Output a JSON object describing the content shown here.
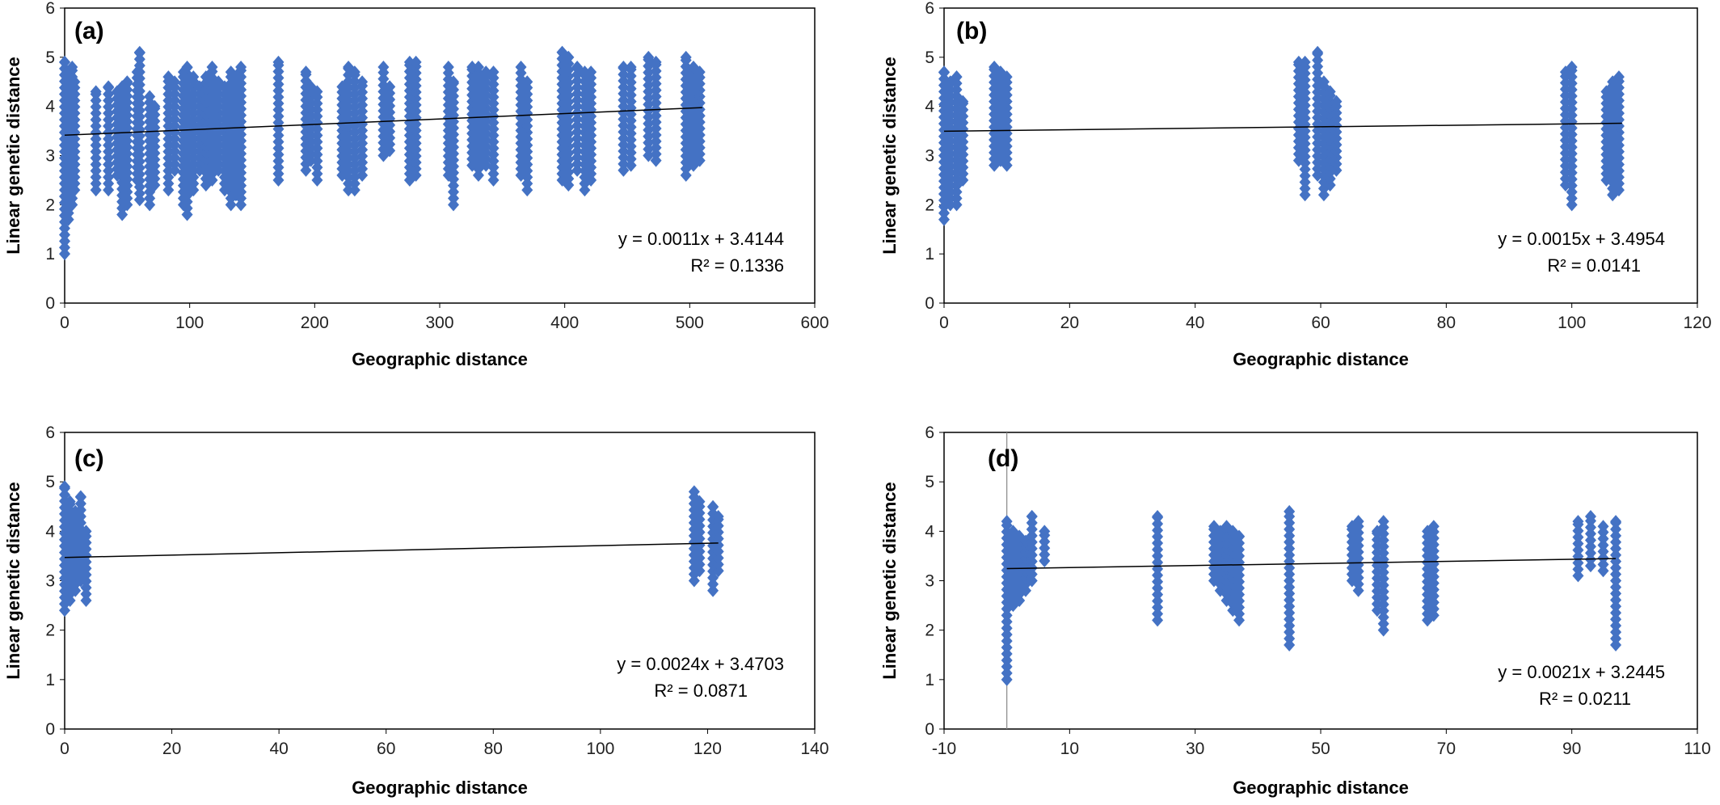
{
  "chart_data": [
    {
      "type": "scatter",
      "panel_label": "(a)",
      "xlabel": "Geographic distance",
      "ylabel": "Linear genetic distance",
      "xlim": [
        0,
        600
      ],
      "ylim": [
        0,
        6
      ],
      "xticks": [
        "0",
        "100",
        "200",
        "300",
        "400",
        "500",
        "600"
      ],
      "yticks": [
        "0",
        "1",
        "2",
        "3",
        "4",
        "5",
        "6"
      ],
      "equation": "y = 0.0011x + 3.4144",
      "r2": "R² = 0.1336",
      "trend": {
        "slope": 0.0011,
        "intercept": 3.4144,
        "x_range": [
          0,
          510
        ]
      },
      "columns": [
        {
          "x": 0,
          "min": 1.0,
          "max": 4.9
        },
        {
          "x": 3,
          "min": 1.7,
          "max": 4.7
        },
        {
          "x": 6,
          "min": 2.0,
          "max": 4.8
        },
        {
          "x": 8,
          "min": 2.3,
          "max": 4.5
        },
        {
          "x": 25,
          "min": 2.3,
          "max": 4.3
        },
        {
          "x": 35,
          "min": 2.3,
          "max": 4.4
        },
        {
          "x": 42,
          "min": 2.6,
          "max": 4.3
        },
        {
          "x": 46,
          "min": 1.8,
          "max": 4.4
        },
        {
          "x": 50,
          "min": 2.0,
          "max": 4.5
        },
        {
          "x": 58,
          "min": 2.5,
          "max": 4.7
        },
        {
          "x": 60,
          "min": 2.1,
          "max": 5.1
        },
        {
          "x": 68,
          "min": 2.0,
          "max": 4.2
        },
        {
          "x": 72,
          "min": 2.4,
          "max": 4.0
        },
        {
          "x": 83,
          "min": 2.3,
          "max": 4.6
        },
        {
          "x": 88,
          "min": 2.7,
          "max": 4.5
        },
        {
          "x": 95,
          "min": 2.0,
          "max": 4.7
        },
        {
          "x": 98,
          "min": 1.8,
          "max": 4.8
        },
        {
          "x": 103,
          "min": 2.3,
          "max": 4.6
        },
        {
          "x": 108,
          "min": 2.7,
          "max": 4.4
        },
        {
          "x": 113,
          "min": 2.4,
          "max": 4.6
        },
        {
          "x": 118,
          "min": 2.5,
          "max": 4.8
        },
        {
          "x": 123,
          "min": 2.7,
          "max": 4.5
        },
        {
          "x": 128,
          "min": 2.3,
          "max": 4.4
        },
        {
          "x": 133,
          "min": 2.0,
          "max": 4.7
        },
        {
          "x": 137,
          "min": 2.2,
          "max": 4.6
        },
        {
          "x": 141,
          "min": 2.0,
          "max": 4.8
        },
        {
          "x": 171,
          "min": 2.5,
          "max": 4.9
        },
        {
          "x": 193,
          "min": 2.7,
          "max": 4.7
        },
        {
          "x": 197,
          "min": 2.9,
          "max": 4.4
        },
        {
          "x": 202,
          "min": 2.5,
          "max": 4.3
        },
        {
          "x": 222,
          "min": 2.6,
          "max": 4.4
        },
        {
          "x": 227,
          "min": 2.3,
          "max": 4.8
        },
        {
          "x": 232,
          "min": 2.3,
          "max": 4.7
        },
        {
          "x": 238,
          "min": 2.6,
          "max": 4.5
        },
        {
          "x": 255,
          "min": 3.0,
          "max": 4.8
        },
        {
          "x": 260,
          "min": 3.1,
          "max": 4.4
        },
        {
          "x": 276,
          "min": 2.5,
          "max": 4.9
        },
        {
          "x": 281,
          "min": 2.6,
          "max": 4.9
        },
        {
          "x": 307,
          "min": 2.6,
          "max": 4.8
        },
        {
          "x": 311,
          "min": 2.0,
          "max": 4.5
        },
        {
          "x": 326,
          "min": 2.8,
          "max": 4.8
        },
        {
          "x": 331,
          "min": 2.6,
          "max": 4.8
        },
        {
          "x": 337,
          "min": 2.8,
          "max": 4.7
        },
        {
          "x": 343,
          "min": 2.5,
          "max": 4.7
        },
        {
          "x": 365,
          "min": 2.6,
          "max": 4.8
        },
        {
          "x": 370,
          "min": 2.3,
          "max": 4.5
        },
        {
          "x": 398,
          "min": 2.5,
          "max": 5.1
        },
        {
          "x": 403,
          "min": 2.4,
          "max": 5.0
        },
        {
          "x": 410,
          "min": 2.7,
          "max": 4.8
        },
        {
          "x": 416,
          "min": 2.3,
          "max": 4.7
        },
        {
          "x": 421,
          "min": 2.5,
          "max": 4.7
        },
        {
          "x": 447,
          "min": 2.7,
          "max": 4.8
        },
        {
          "x": 453,
          "min": 2.8,
          "max": 4.8
        },
        {
          "x": 467,
          "min": 3.0,
          "max": 5.0
        },
        {
          "x": 473,
          "min": 2.9,
          "max": 4.9
        },
        {
          "x": 497,
          "min": 2.6,
          "max": 5.0
        },
        {
          "x": 503,
          "min": 2.8,
          "max": 4.8
        },
        {
          "x": 508,
          "min": 2.9,
          "max": 4.7
        }
      ]
    },
    {
      "type": "scatter",
      "panel_label": "(b)",
      "xlabel": "Geographic distance",
      "ylabel": "Linear genetic distance",
      "xlim": [
        0,
        120
      ],
      "ylim": [
        0,
        6
      ],
      "xticks": [
        "0",
        "20",
        "40",
        "60",
        "80",
        "100",
        "120"
      ],
      "yticks": [
        "0",
        "1",
        "2",
        "3",
        "4",
        "5",
        "6"
      ],
      "equation": "y = 0.0015x + 3.4954",
      "r2": "R² = 0.0141",
      "trend": {
        "slope": 0.0015,
        "intercept": 3.4954,
        "x_range": [
          0,
          108
        ]
      },
      "columns": [
        {
          "x": 0,
          "min": 1.7,
          "max": 4.7
        },
        {
          "x": 1,
          "min": 2.0,
          "max": 4.5
        },
        {
          "x": 2,
          "min": 2.0,
          "max": 4.6
        },
        {
          "x": 3,
          "min": 2.5,
          "max": 4.1
        },
        {
          "x": 8,
          "min": 2.8,
          "max": 4.8
        },
        {
          "x": 9,
          "min": 2.9,
          "max": 4.7
        },
        {
          "x": 10,
          "min": 2.8,
          "max": 4.6
        },
        {
          "x": 56.5,
          "min": 2.9,
          "max": 4.9
        },
        {
          "x": 57.5,
          "min": 2.2,
          "max": 4.9
        },
        {
          "x": 59.5,
          "min": 2.6,
          "max": 5.1
        },
        {
          "x": 60.5,
          "min": 2.2,
          "max": 4.5
        },
        {
          "x": 61.5,
          "min": 2.4,
          "max": 4.3
        },
        {
          "x": 62.5,
          "min": 2.7,
          "max": 4.1
        },
        {
          "x": 99,
          "min": 2.4,
          "max": 4.7
        },
        {
          "x": 100,
          "min": 2.0,
          "max": 4.8
        },
        {
          "x": 105.5,
          "min": 2.5,
          "max": 4.3
        },
        {
          "x": 106.5,
          "min": 2.2,
          "max": 4.5
        },
        {
          "x": 107.5,
          "min": 2.3,
          "max": 4.6
        }
      ]
    },
    {
      "type": "scatter",
      "panel_label": "(c)",
      "xlabel": "Geographic distance",
      "ylabel": "Linear genetic distance",
      "xlim": [
        0,
        140
      ],
      "ylim": [
        0,
        6
      ],
      "xticks": [
        "0",
        "20",
        "40",
        "60",
        "80",
        "100",
        "120",
        "140"
      ],
      "yticks": [
        "0",
        "1",
        "2",
        "3",
        "4",
        "5",
        "6"
      ],
      "equation": "y = 0.0024x + 3.4703",
      "r2": "R² = 0.0871",
      "trend": {
        "slope": 0.0024,
        "intercept": 3.4703,
        "x_range": [
          0,
          122
        ]
      },
      "columns": [
        {
          "x": 0,
          "min": 2.4,
          "max": 4.9
        },
        {
          "x": 1,
          "min": 2.6,
          "max": 4.6
        },
        {
          "x": 2,
          "min": 2.8,
          "max": 4.4
        },
        {
          "x": 3,
          "min": 3.0,
          "max": 4.7
        },
        {
          "x": 4,
          "min": 2.6,
          "max": 4.0
        },
        {
          "x": 117.5,
          "min": 3.0,
          "max": 4.8
        },
        {
          "x": 118.5,
          "min": 3.2,
          "max": 4.6
        },
        {
          "x": 121,
          "min": 2.8,
          "max": 4.5
        },
        {
          "x": 122,
          "min": 3.2,
          "max": 4.3
        }
      ]
    },
    {
      "type": "scatter",
      "panel_label": "(d)",
      "xlabel": "Geographic distance",
      "ylabel": "Linear genetic distance",
      "xlim": [
        -10,
        110
      ],
      "ylim": [
        0,
        6
      ],
      "xticks": [
        "-10",
        "10",
        "30",
        "50",
        "70",
        "90",
        "110"
      ],
      "yticks": [
        "0",
        "1",
        "2",
        "3",
        "4",
        "5",
        "6"
      ],
      "equation": "y = 0.0021x + 3.2445",
      "r2": "R² = 0.0211",
      "trend": {
        "slope": 0.0021,
        "intercept": 3.2445,
        "x_range": [
          0,
          97
        ]
      },
      "columns": [
        {
          "x": 0,
          "min": 1.0,
          "max": 4.2
        },
        {
          "x": 1,
          "min": 2.5,
          "max": 4.0
        },
        {
          "x": 2,
          "min": 2.6,
          "max": 3.9
        },
        {
          "x": 3,
          "min": 2.8,
          "max": 3.8
        },
        {
          "x": 4,
          "min": 3.0,
          "max": 4.3
        },
        {
          "x": 6,
          "min": 3.4,
          "max": 4.0
        },
        {
          "x": 24,
          "min": 2.2,
          "max": 4.3
        },
        {
          "x": 33,
          "min": 3.0,
          "max": 4.1
        },
        {
          "x": 34,
          "min": 2.8,
          "max": 4.0
        },
        {
          "x": 35,
          "min": 2.6,
          "max": 4.1
        },
        {
          "x": 36,
          "min": 2.4,
          "max": 4.0
        },
        {
          "x": 37,
          "min": 2.2,
          "max": 3.9
        },
        {
          "x": 45,
          "min": 1.7,
          "max": 4.4
        },
        {
          "x": 55,
          "min": 3.0,
          "max": 4.1
        },
        {
          "x": 56,
          "min": 2.8,
          "max": 4.2
        },
        {
          "x": 59,
          "min": 2.4,
          "max": 4.0
        },
        {
          "x": 60,
          "min": 2.0,
          "max": 4.2
        },
        {
          "x": 67,
          "min": 2.2,
          "max": 4.0
        },
        {
          "x": 68,
          "min": 2.3,
          "max": 4.1
        },
        {
          "x": 91,
          "min": 3.1,
          "max": 4.2
        },
        {
          "x": 93,
          "min": 3.3,
          "max": 4.3
        },
        {
          "x": 95,
          "min": 3.2,
          "max": 4.1
        },
        {
          "x": 97,
          "min": 1.7,
          "max": 4.2
        }
      ]
    }
  ],
  "colors": {
    "marker": "#4472C4",
    "trend": "#000000",
    "axis": "#000000",
    "text": "#222222"
  }
}
